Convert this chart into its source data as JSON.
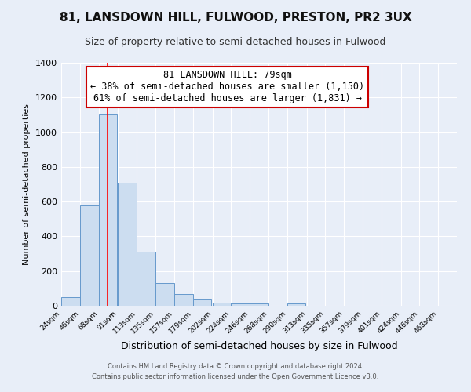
{
  "title": "81, LANSDOWN HILL, FULWOOD, PRESTON, PR2 3UX",
  "subtitle": "Size of property relative to semi-detached houses in Fulwood",
  "xlabel": "Distribution of semi-detached houses by size in Fulwood",
  "ylabel": "Number of semi-detached properties",
  "bin_labels": [
    "24sqm",
    "46sqm",
    "68sqm",
    "91sqm",
    "113sqm",
    "135sqm",
    "157sqm",
    "179sqm",
    "202sqm",
    "224sqm",
    "246sqm",
    "268sqm",
    "290sqm",
    "313sqm",
    "335sqm",
    "357sqm",
    "379sqm",
    "401sqm",
    "424sqm",
    "446sqm",
    "468sqm"
  ],
  "bin_edges": [
    24,
    46,
    68,
    91,
    113,
    135,
    157,
    179,
    202,
    224,
    246,
    268,
    290,
    313,
    335,
    357,
    379,
    401,
    424,
    446,
    468
  ],
  "bar_heights": [
    50,
    580,
    1100,
    710,
    310,
    130,
    70,
    35,
    20,
    15,
    15,
    0,
    15,
    0,
    0,
    0,
    0,
    0,
    0,
    0
  ],
  "bar_color": "#ccddf0",
  "bar_edge_color": "#6699cc",
  "red_line_x": 79,
  "ylim": [
    0,
    1400
  ],
  "yticks": [
    0,
    200,
    400,
    600,
    800,
    1000,
    1200,
    1400
  ],
  "annotation_title": "81 LANSDOWN HILL: 79sqm",
  "annotation_line1": "← 38% of semi-detached houses are smaller (1,150)",
  "annotation_line2": "61% of semi-detached houses are larger (1,831) →",
  "footer_line1": "Contains HM Land Registry data © Crown copyright and database right 2024.",
  "footer_line2": "Contains public sector information licensed under the Open Government Licence v3.0.",
  "background_color": "#e8eef8",
  "plot_bg_color": "#e8eef8",
  "grid_color": "#ffffff",
  "annotation_border_color": "#cc0000",
  "title_fontsize": 11,
  "subtitle_fontsize": 9
}
